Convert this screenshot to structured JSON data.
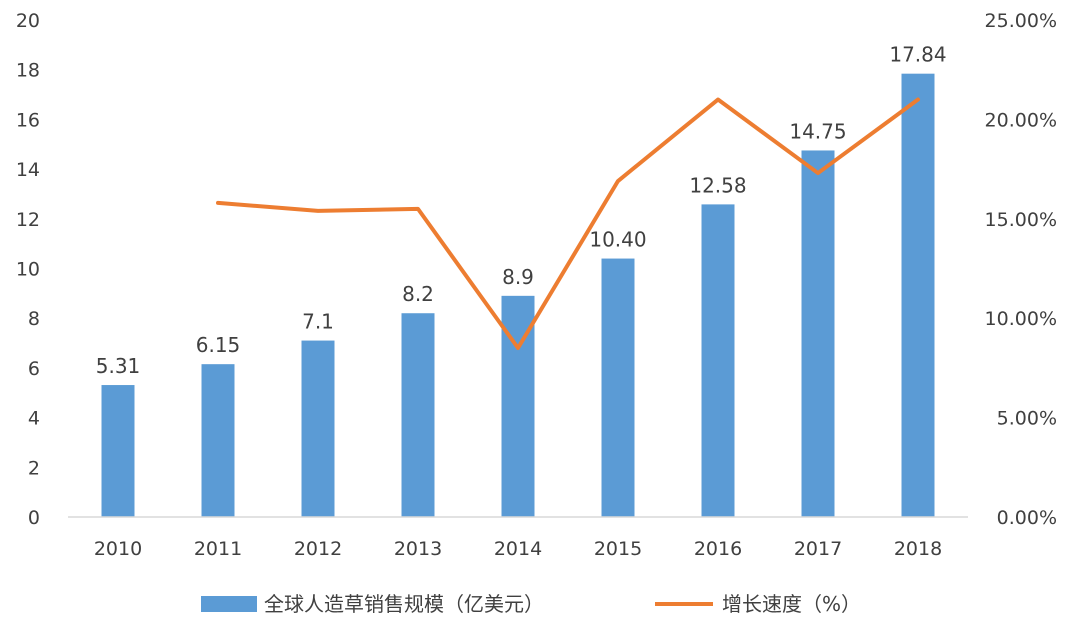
{
  "chart_data": {
    "type": "bar",
    "categories": [
      "2010",
      "2011",
      "2012",
      "2013",
      "2014",
      "2015",
      "2016",
      "2017",
      "2018"
    ],
    "series": [
      {
        "name": "全球人造草销售规模（亿美元）",
        "kind": "bar",
        "axis": "left",
        "color": "#5B9BD5",
        "values": [
          5.31,
          6.15,
          7.1,
          8.2,
          8.9,
          10.4,
          12.58,
          14.75,
          17.84
        ],
        "labels": [
          "5.31",
          "6.15",
          "7.1",
          "8.2",
          "8.9",
          "10.40",
          "12.58",
          "14.75",
          "17.84"
        ]
      },
      {
        "name": "增长速度（%）",
        "kind": "line",
        "axis": "right",
        "color": "#ED7D31",
        "values": [
          null,
          15.8,
          15.4,
          15.5,
          8.5,
          16.9,
          21.0,
          17.3,
          21.0
        ]
      }
    ],
    "y_left": {
      "min": 0,
      "max": 20,
      "ticks": [
        0,
        2,
        4,
        6,
        8,
        10,
        12,
        14,
        16,
        18,
        20
      ],
      "tick_labels": [
        "0",
        "2",
        "4",
        "6",
        "8",
        "10",
        "12",
        "14",
        "16",
        "18",
        "20"
      ]
    },
    "y_right": {
      "min": 0,
      "max": 25,
      "ticks": [
        0,
        5,
        10,
        15,
        20,
        25
      ],
      "tick_labels": [
        "0.00%",
        "5.00%",
        "10.00%",
        "15.00%",
        "20.00%",
        "25.00%"
      ]
    },
    "grid": false,
    "legend": "bottom"
  }
}
